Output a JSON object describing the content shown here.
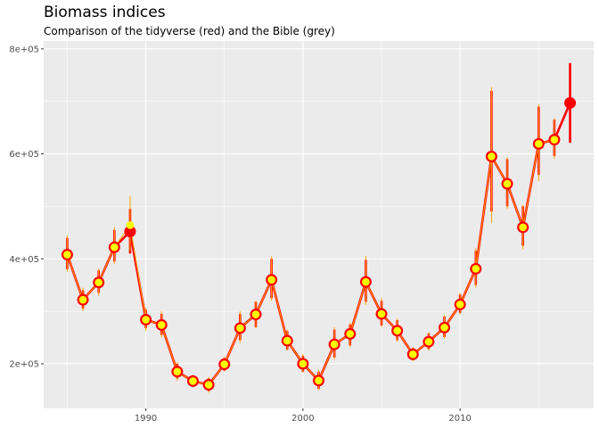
{
  "title": "Biomass indices",
  "subtitle": "Comparison of the tidyverse (red) and the Bible (grey)",
  "colors": {
    "panel_background": "#ebebeb",
    "gridline": "#ffffff",
    "tidyverse": "#ff0000",
    "bible_points": "#ffff00",
    "bible_errorbars": "#ffa500",
    "tick_label": "#4d4d4d"
  },
  "chart_data": {
    "type": "line",
    "x_ticks": [
      1990,
      2000,
      2010
    ],
    "y_ticks": [
      200000,
      400000,
      600000,
      800000
    ],
    "y_tick_labels": [
      "2e+05",
      "4e+05",
      "6e+05",
      "8e+05"
    ],
    "xlim": [
      1983.5,
      2018.5
    ],
    "ylim": [
      115000,
      815000
    ],
    "grid": true,
    "series": [
      {
        "style": "red line with red points and red error bars",
        "x": [
          1985,
          1986,
          1987,
          1988,
          1989,
          1990,
          1991,
          1992,
          1993,
          1994,
          1995,
          1996,
          1997,
          1998,
          1999,
          2000,
          2001,
          2002,
          2003,
          2004,
          2005,
          2006,
          2007,
          2008,
          2009,
          2010,
          2011,
          2012,
          2013,
          2014,
          2015,
          2016,
          2017
        ],
        "y": [
          408000,
          322000,
          355000,
          422000,
          452000,
          284000,
          274000,
          185000,
          167000,
          160000,
          199000,
          268000,
          294000,
          360000,
          244000,
          200000,
          168000,
          237000,
          257000,
          356000,
          295000,
          263000,
          218000,
          242000,
          269000,
          313000,
          381000,
          595000,
          543000,
          460000,
          619000,
          627000,
          697000
        ],
        "lower": [
          380000,
          305000,
          335000,
          395000,
          410000,
          268000,
          255000,
          172000,
          158000,
          148000,
          187000,
          245000,
          270000,
          325000,
          227000,
          185000,
          152000,
          212000,
          235000,
          318000,
          273000,
          245000,
          207000,
          228000,
          251000,
          297000,
          350000,
          490000,
          500000,
          425000,
          560000,
          596000,
          621000
        ],
        "upper": [
          440000,
          340000,
          378000,
          455000,
          495000,
          303000,
          295000,
          200000,
          177000,
          172000,
          211000,
          295000,
          318000,
          400000,
          262000,
          215000,
          185000,
          265000,
          275000,
          398000,
          320000,
          283000,
          230000,
          258000,
          290000,
          332000,
          415000,
          720000,
          590000,
          500000,
          690000,
          665000,
          773000
        ]
      },
      {
        "style": "orange line with yellow points and orange error bars",
        "x": [
          1985,
          1986,
          1987,
          1988,
          1989,
          1990,
          1991,
          1992,
          1993,
          1994,
          1995,
          1996,
          1997,
          1998,
          1999,
          2000,
          2001,
          2002,
          2003,
          2004,
          2005,
          2006,
          2007,
          2008,
          2009,
          2010,
          2011,
          2012,
          2013,
          2014,
          2015,
          2016
        ],
        "y": [
          408000,
          322000,
          355000,
          422000,
          464000,
          284000,
          274000,
          185000,
          167000,
          160000,
          199000,
          268000,
          294000,
          360000,
          244000,
          200000,
          168000,
          237000,
          257000,
          356000,
          295000,
          263000,
          218000,
          242000,
          269000,
          313000,
          381000,
          595000,
          543000,
          460000,
          619000,
          627000
        ],
        "lower": [
          375000,
          300000,
          330000,
          390000,
          415000,
          263000,
          250000,
          168000,
          155000,
          145000,
          185000,
          240000,
          268000,
          320000,
          225000,
          183000,
          150000,
          208000,
          232000,
          312000,
          270000,
          242000,
          205000,
          225000,
          248000,
          294000,
          345000,
          468000,
          495000,
          418000,
          548000,
          590000
        ],
        "upper": [
          445000,
          345000,
          382000,
          460000,
          520000,
          306000,
          300000,
          203000,
          179000,
          175000,
          213000,
          300000,
          320000,
          405000,
          265000,
          218000,
          188000,
          270000,
          278000,
          405000,
          325000,
          286000,
          232000,
          260000,
          293000,
          335000,
          420000,
          727000,
          593000,
          503000,
          695000,
          668000
        ]
      }
    ]
  }
}
